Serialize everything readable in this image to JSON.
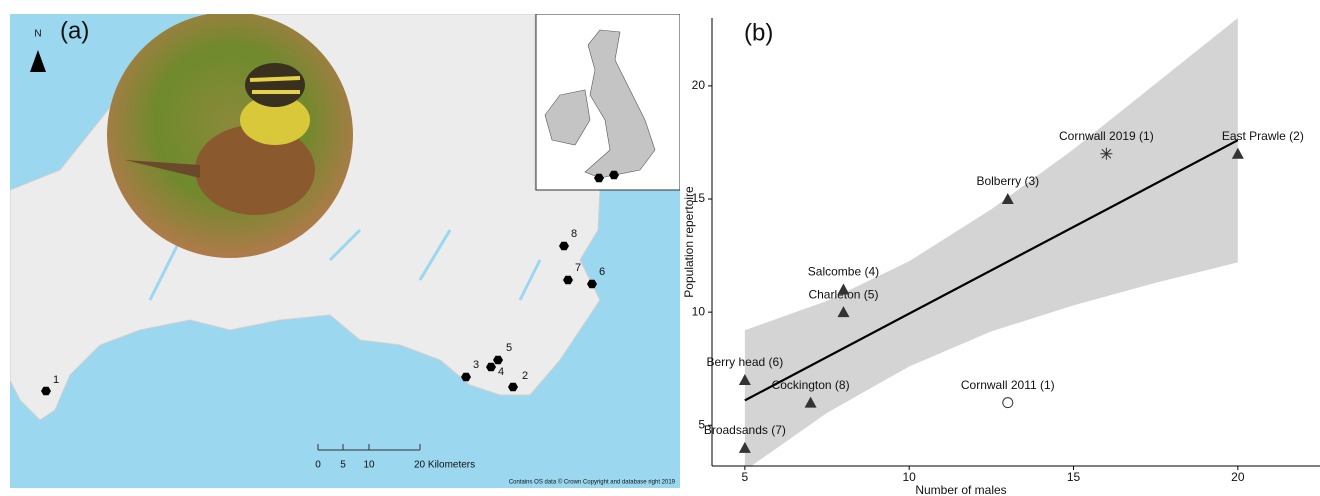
{
  "map": {
    "panel_label": "(a)",
    "north": "N",
    "sites": [
      "1",
      "2",
      "3",
      "4",
      "5",
      "6",
      "7",
      "8"
    ],
    "scale_labels": [
      "0",
      "5",
      "10",
      "20 Kilometers"
    ],
    "credit": "Contains OS data © Crown Copyright and database right 2019"
  },
  "chart_data": {
    "type": "scatter",
    "panel_label": "(b)",
    "x_label": "Number of males",
    "y_label": "Population repertoire",
    "x": [
      5,
      5,
      7,
      8,
      8,
      13,
      20,
      16,
      13
    ],
    "y": [
      4,
      7,
      6,
      10,
      11,
      15,
      17,
      17,
      6
    ],
    "labels": [
      "Broadsands (7)",
      "Berry head (6)",
      "Cockington (8)",
      "Charleton (5)",
      "Salcombe (4)",
      "Bolberry (3)",
      "East Prawle (2)",
      "Cornwall 2019 (1)",
      "Cornwall 2011 (1)"
    ],
    "markers": [
      "triangle",
      "triangle",
      "triangle",
      "triangle",
      "triangle",
      "triangle",
      "triangle",
      "asterisk",
      "circle"
    ],
    "color": "#333333",
    "fit": {
      "x": [
        5,
        20
      ],
      "y": [
        6.1,
        17.6
      ],
      "color": "#000000"
    },
    "band": {
      "x": [
        5,
        7.5,
        10,
        12.5,
        15,
        17.5,
        20
      ],
      "lower": [
        3.0,
        5.55,
        7.6,
        9.15,
        10.3,
        11.3,
        12.2
      ],
      "upper": [
        9.2,
        10.5,
        12.25,
        14.55,
        17.2,
        20.1,
        23.0
      ],
      "color": "#d4d4d4"
    },
    "xlim": [
      4,
      22.5
    ],
    "ylim": [
      3.2,
      23
    ],
    "xticks": [
      5,
      10,
      15,
      20
    ],
    "yticks": [
      5,
      10,
      15,
      20
    ]
  }
}
